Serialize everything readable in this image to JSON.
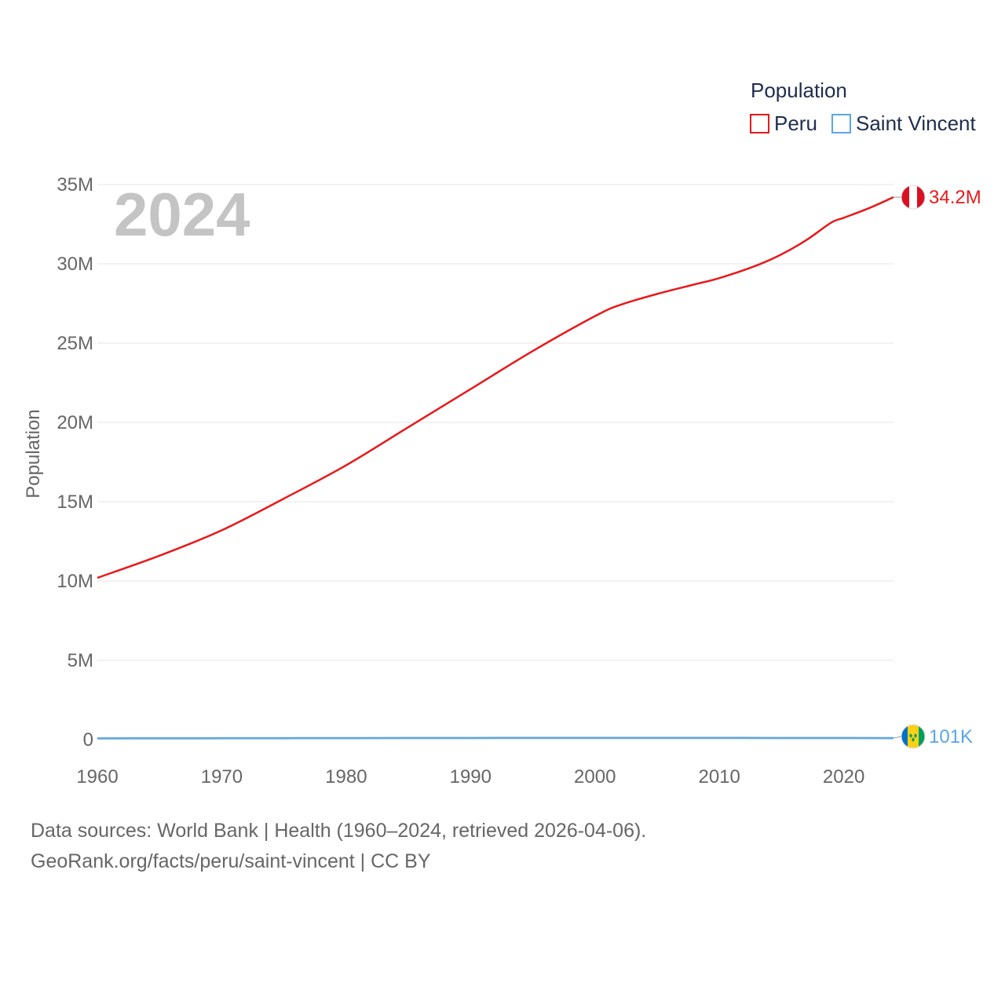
{
  "chart_data": {
    "type": "line",
    "title": "Population",
    "ylabel": "Population",
    "xlabel": "",
    "highlight_year": "2024",
    "xlim": [
      1960,
      2024
    ],
    "ylim": [
      0,
      35000000
    ],
    "x_ticks": [
      1960,
      1970,
      1980,
      1990,
      2000,
      2010,
      2020
    ],
    "y_ticks": [
      {
        "value": 0,
        "label": "0"
      },
      {
        "value": 5000000,
        "label": "5M"
      },
      {
        "value": 10000000,
        "label": "10M"
      },
      {
        "value": 15000000,
        "label": "15M"
      },
      {
        "value": 20000000,
        "label": "20M"
      },
      {
        "value": 25000000,
        "label": "25M"
      },
      {
        "value": 30000000,
        "label": "30M"
      },
      {
        "value": 35000000,
        "label": "35M"
      }
    ],
    "grid": true,
    "legend_position": "top-right",
    "series": [
      {
        "name": "Peru",
        "color": "#e8191b",
        "end_label": "34.2M",
        "flag": "peru-flag",
        "points": [
          [
            1960,
            10200000
          ],
          [
            1965,
            11600000
          ],
          [
            1970,
            13200000
          ],
          [
            1975,
            15200000
          ],
          [
            1980,
            17300000
          ],
          [
            1985,
            19700000
          ],
          [
            1990,
            22100000
          ],
          [
            1995,
            24500000
          ],
          [
            2000,
            26700000
          ],
          [
            2002,
            27400000
          ],
          [
            2005,
            28100000
          ],
          [
            2008,
            28700000
          ],
          [
            2010,
            29100000
          ],
          [
            2013,
            29900000
          ],
          [
            2015,
            30600000
          ],
          [
            2017,
            31500000
          ],
          [
            2019,
            32600000
          ],
          [
            2020,
            32900000
          ],
          [
            2022,
            33500000
          ],
          [
            2024,
            34200000
          ]
        ]
      },
      {
        "name": "Saint Vincent",
        "color": "#5aa6e6",
        "end_label": "101K",
        "flag": "saint-vincent-flag",
        "points": [
          [
            1960,
            81000
          ],
          [
            1965,
            86000
          ],
          [
            1970,
            90000
          ],
          [
            1975,
            95000
          ],
          [
            1980,
            101000
          ],
          [
            1985,
            106000
          ],
          [
            1990,
            108000
          ],
          [
            1995,
            109000
          ],
          [
            2000,
            111000
          ],
          [
            2005,
            110000
          ],
          [
            2010,
            109000
          ],
          [
            2015,
            108000
          ],
          [
            2020,
            104000
          ],
          [
            2024,
            101000
          ]
        ]
      }
    ]
  },
  "footer": {
    "line1": "Data sources: World Bank | Health (1960–2024, retrieved 2026-04-06).",
    "line2": "GeoRank.org/facts/peru/saint-vincent | CC BY"
  }
}
